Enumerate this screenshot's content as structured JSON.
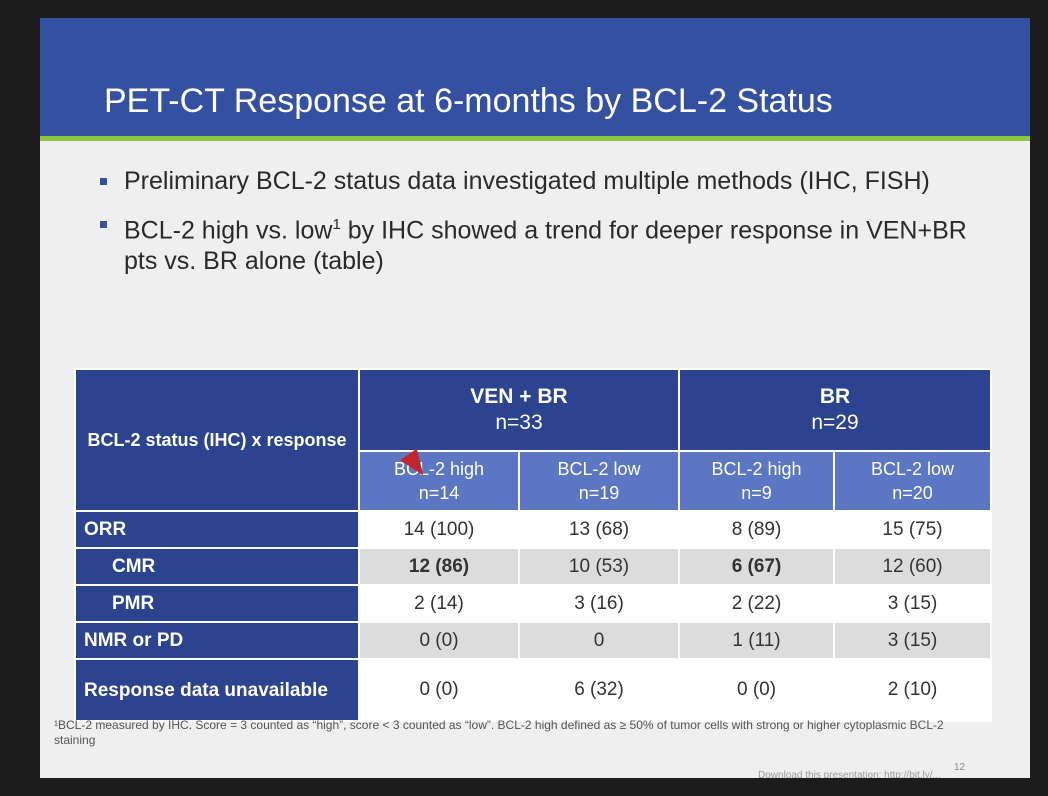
{
  "slide": {
    "title": "PET-CT Response at 6-months by BCL-2 Status",
    "bullets": [
      {
        "text": "Preliminary BCL-2 status data investigated multiple methods (IHC, FISH)"
      },
      {
        "text_before": "BCL-2 high vs. low",
        "sup": "1",
        "text_after": " by IHC showed a trend for deeper response in VEN+BR pts vs. BR alone (table)"
      }
    ]
  },
  "table": {
    "corner_label": "BCL-2 status (IHC) x response",
    "groups": [
      {
        "name": "VEN + BR",
        "n": "n=33"
      },
      {
        "name": "BR",
        "n": "n=29"
      }
    ],
    "subgroups": [
      {
        "label": "BCL-2 high",
        "n": "n=14"
      },
      {
        "label": "BCL-2 low",
        "n": "n=19"
      },
      {
        "label": "BCL-2 high",
        "n": "n=9"
      },
      {
        "label": "BCL-2 low",
        "n": "n=20"
      }
    ],
    "rows": [
      {
        "label": "ORR",
        "cells": [
          "14 (100)",
          "13 (68)",
          "8 (89)",
          "15 (75)"
        ]
      },
      {
        "label": "CMR",
        "cells": [
          "12 (86)",
          "10 (53)",
          "6 (67)",
          "12 (60)"
        ]
      },
      {
        "label": "PMR",
        "cells": [
          "2 (14)",
          "3 (16)",
          "2 (22)",
          "3 (15)"
        ]
      },
      {
        "label": "NMR or PD",
        "cells": [
          "0 (0)",
          "0",
          "1 (11)",
          "3 (15)"
        ]
      },
      {
        "label": "Response data unavailable",
        "cells": [
          "0 (0)",
          "6 (32)",
          "0 (0)",
          "2 (10)"
        ]
      }
    ]
  },
  "footnote": "¹BCL-2 measured by IHC. Score = 3 counted as “high”,  score < 3 counted as “low”.  BCL-2 high defined as ≥ 50% of tumor cells with strong or higher cytoplasmic BCL-2 staining",
  "page_number": "12",
  "download_text": "Download this presentation: http://bit.ly/..."
}
